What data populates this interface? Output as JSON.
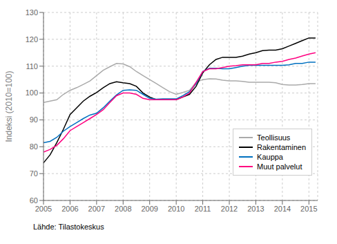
{
  "chart_data": {
    "type": "line",
    "y_label": "Indeksi (2010=100)",
    "annotations": [
      "Lähde: Tilastokeskus"
    ],
    "x": [
      2005.0,
      2005.25,
      2005.5,
      2005.75,
      2006.0,
      2006.25,
      2006.5,
      2006.75,
      2007.0,
      2007.25,
      2007.5,
      2007.75,
      2008.0,
      2008.25,
      2008.5,
      2008.75,
      2009.0,
      2009.25,
      2009.5,
      2009.75,
      2010.0,
      2010.25,
      2010.5,
      2010.75,
      2011.0,
      2011.25,
      2011.5,
      2011.75,
      2012.0,
      2012.25,
      2012.5,
      2012.75,
      2013.0,
      2013.25,
      2013.5,
      2013.75,
      2014.0,
      2014.25,
      2014.5,
      2014.75,
      2015.0,
      2015.25
    ],
    "series": [
      {
        "name": "Teollisuus",
        "color": "#aaaaaa",
        "values": [
          96.5,
          97.0,
          97.5,
          99.5,
          101.0,
          102.0,
          103.2,
          104.5,
          106.5,
          108.5,
          109.8,
          111.0,
          110.8,
          109.8,
          108.0,
          106.5,
          105.0,
          103.5,
          102.0,
          100.5,
          99.5,
          100.2,
          101.0,
          104.0,
          105.0,
          105.3,
          105.2,
          104.8,
          104.5,
          104.5,
          104.3,
          104.0,
          104.0,
          104.0,
          104.0,
          103.8,
          103.2,
          103.0,
          103.0,
          103.2,
          103.5,
          103.5
        ]
      },
      {
        "name": "Rakentaminen",
        "color": "#000000",
        "values": [
          74.0,
          77.0,
          81.5,
          86.5,
          92.0,
          94.5,
          97.0,
          98.8,
          100.2,
          102.0,
          103.5,
          104.2,
          103.8,
          103.5,
          102.5,
          100.0,
          98.5,
          97.5,
          97.5,
          97.5,
          97.5,
          98.5,
          99.5,
          102.5,
          107.5,
          110.5,
          112.5,
          113.3,
          113.3,
          113.3,
          113.7,
          114.5,
          115.0,
          115.8,
          116.0,
          116.0,
          116.5,
          117.5,
          118.5,
          119.5,
          120.5,
          120.5
        ]
      },
      {
        "name": "Kauppa",
        "color": "#0070c0",
        "values": [
          81.5,
          82.0,
          83.5,
          85.8,
          87.5,
          89.0,
          90.5,
          91.8,
          92.5,
          94.5,
          97.0,
          99.3,
          101.0,
          101.2,
          101.0,
          99.5,
          98.0,
          97.7,
          97.8,
          97.8,
          97.8,
          99.0,
          100.5,
          103.5,
          108.0,
          109.2,
          109.2,
          109.0,
          109.0,
          109.5,
          110.0,
          110.3,
          110.3,
          110.3,
          110.3,
          110.3,
          110.3,
          110.5,
          111.0,
          111.0,
          111.5,
          111.5
        ]
      },
      {
        "name": "Muut palvelut",
        "color": "#ff0080",
        "values": [
          78.0,
          79.0,
          80.5,
          83.0,
          86.0,
          87.5,
          89.0,
          90.5,
          92.0,
          93.8,
          96.5,
          99.0,
          100.0,
          100.0,
          99.5,
          98.0,
          97.5,
          97.5,
          97.5,
          97.5,
          97.5,
          98.5,
          100.0,
          104.0,
          108.0,
          109.0,
          109.0,
          109.5,
          110.0,
          110.2,
          110.5,
          110.5,
          110.5,
          111.0,
          111.0,
          111.5,
          111.8,
          112.5,
          113.0,
          113.8,
          114.5,
          115.0
        ]
      }
    ],
    "xlim": [
      2005.0,
      2015.33
    ],
    "ylim": [
      60,
      130
    ],
    "xticks": [
      2005,
      2006,
      2007,
      2008,
      2009,
      2010,
      2011,
      2012,
      2013,
      2014,
      2015
    ],
    "yticks": [
      60,
      70,
      80,
      90,
      100,
      110,
      120,
      130
    ],
    "grid": true,
    "legend": "center right"
  }
}
